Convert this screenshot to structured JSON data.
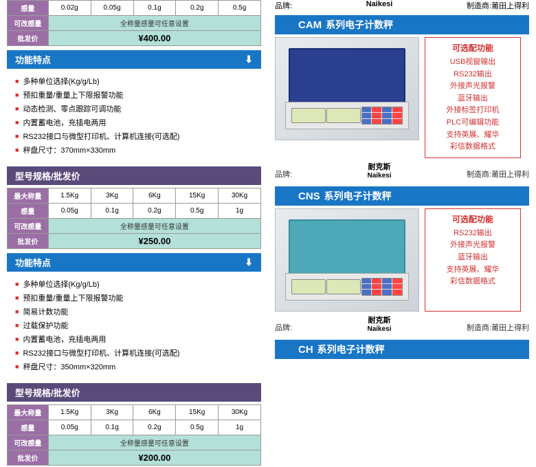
{
  "left": {
    "table1": {
      "rows": [
        {
          "label": "感量",
          "cells": [
            "0.02g",
            "0.05g",
            "0.1g",
            "0.2g",
            "0.5g"
          ]
        },
        {
          "label": "可改感量",
          "merged": "全称量感量可任意设置"
        },
        {
          "label": "批发价",
          "price": "¥400.00"
        }
      ]
    },
    "features_hdr": "功能特点",
    "features1": [
      "多种单位选择(Kg/g/Lb)",
      "预扣重量/重量上下限报警功能",
      "动态检测、零点跟踪可调功能",
      "内置蓄电池，充插电两用",
      "RS232接口与微型打印机、计算机连接(可选配)",
      "秤盘尺寸：370mm×330mm"
    ],
    "spec_hdr": "型号规格/批发价",
    "table2": {
      "rows": [
        {
          "label": "最大称量",
          "cells": [
            "1.5Kg",
            "3Kg",
            "6Kg",
            "15Kg",
            "30Kg"
          ]
        },
        {
          "label": "感量",
          "cells": [
            "0.05g",
            "0.1g",
            "0.2g",
            "0.5g",
            "1g"
          ]
        },
        {
          "label": "可改感量",
          "merged": "全称量感量可任意设置"
        },
        {
          "label": "批发价",
          "price": "¥250.00"
        }
      ]
    },
    "features2": [
      "多种单位选择(Kg/g/Lb)",
      "预扣重量/重量上下限报警功能",
      "简易计数功能",
      "过载保护功能",
      "内置蓄电池，充插电两用",
      "RS232接口与微型打印机、计算机连接(可选配)",
      "秤盘尺寸：350mm×320mm"
    ],
    "table3": {
      "rows": [
        {
          "label": "最大称量",
          "cells": [
            "1.5Kg",
            "3Kg",
            "6Kg",
            "15Kg",
            "30Kg"
          ]
        },
        {
          "label": "感量",
          "cells": [
            "0.05g",
            "0.1g",
            "0.2g",
            "0.5g",
            "1g"
          ]
        },
        {
          "label": "可改感量",
          "merged": "全称量感量可任意设置"
        },
        {
          "label": "批发价",
          "price": "¥200.00"
        }
      ]
    }
  },
  "right": {
    "top_brand": {
      "brand_label": "品牌:",
      "brand": "Naikesi",
      "mfr_label": "制造商:",
      "mfr": "莆田上得利"
    },
    "product1": {
      "model": "CAM",
      "title": "系列电子计数秤",
      "options_hdr": "可选配功能",
      "options": [
        "USB视窗输出",
        "RS232输出",
        "外接声光报警",
        "蓝牙输出",
        "外接标签打印机",
        "PLC可编辑功能",
        "支持英展、耀华",
        "彩信数据格式"
      ],
      "brand_label": "品牌:",
      "brand_cn": "耐克斯",
      "brand_en": "Naikesi",
      "mfr_label": "制造商:",
      "mfr": "莆田上得利"
    },
    "product2": {
      "model": "CNS",
      "title": "系列电子计数秤",
      "options_hdr": "可选配功能",
      "options": [
        "RS232输出",
        "外接声光报警",
        "蓝牙输出",
        "支持英展、耀华",
        "彩信数据格式"
      ],
      "brand_label": "品牌:",
      "brand_cn": "耐克斯",
      "brand_en": "Naikesi",
      "mfr_label": "制造商:",
      "mfr": "莆田上得利"
    },
    "product3": {
      "model": "CH",
      "title": "系列电子计数秤"
    }
  }
}
